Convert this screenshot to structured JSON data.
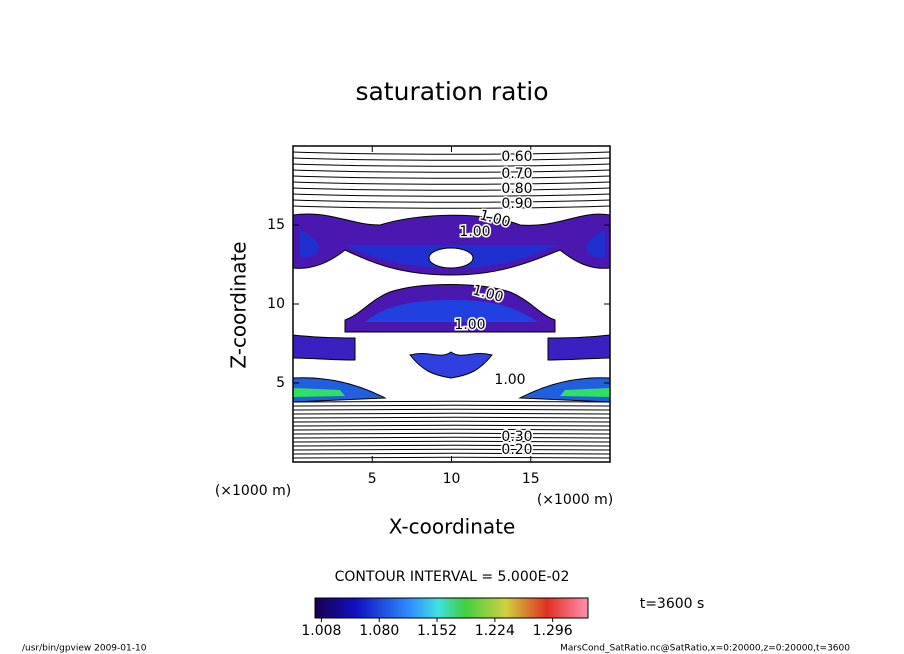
{
  "chart_data": {
    "type": "contour",
    "title": "saturation ratio",
    "x_label": "X-coordinate",
    "y_label": "Z-coordinate",
    "x_unit": "(×1000 m)",
    "y_unit": "(×1000 m)",
    "xlim": [
      0,
      20
    ],
    "xticks": [
      5,
      10,
      15
    ],
    "ylim": [
      0,
      20
    ],
    "yticks": [
      5,
      10,
      15
    ],
    "contour_labels": [
      "0.60",
      "0.70",
      "0.80",
      "0.90",
      "1.00",
      "1.00",
      "1.00",
      "1.00",
      "1.00",
      "0.30",
      "0.20"
    ],
    "contour_interval": "CONTOUR INTERVAL = 5.000E-02",
    "colorbar": {
      "lim": [
        1.0,
        1.34
      ],
      "ticks": [
        1.008,
        {
          "value": 1.08,
          "label": "1.080"
        },
        1.152,
        1.224,
        1.296
      ]
    },
    "time_label": "t=3600 s",
    "footer_left": "/usr/bin/gpview   2009-01-10",
    "footer_right": "MarsCond_SatRatio.nc@SatRatio,x=0:20000,z=0:20000,t=3600"
  }
}
